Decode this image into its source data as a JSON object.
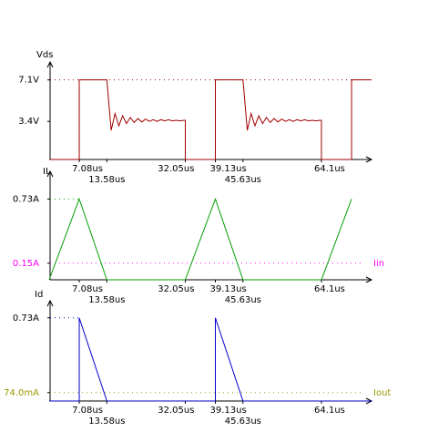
{
  "chart_data": [
    {
      "type": "line",
      "y_label": "Vds",
      "x": [
        0,
        7.08,
        7.08,
        13.58,
        14.6,
        15.5,
        16.4,
        17.3,
        18.2,
        19.1,
        20.0,
        20.9,
        21.8,
        22.7,
        23.6,
        24.5,
        25.4,
        26.3,
        27.2,
        28.1,
        29.0,
        29.9,
        30.8,
        31.7,
        32.05,
        32.05,
        39.13,
        39.13,
        45.63,
        46.65,
        47.55,
        48.45,
        49.35,
        50.25,
        51.15,
        52.05,
        52.95,
        53.85,
        54.75,
        55.65,
        56.55,
        57.45,
        58.35,
        59.25,
        60.15,
        61.05,
        61.95,
        62.85,
        63.75,
        64.1,
        64.1,
        71.2,
        71.2,
        75.9
      ],
      "series": [
        {
          "color": "#a00000",
          "values": [
            0,
            0,
            7.1,
            7.1,
            2.6,
            4.1,
            3.0,
            3.9,
            3.2,
            3.75,
            3.3,
            3.65,
            3.35,
            3.6,
            3.4,
            3.55,
            3.4,
            3.55,
            3.45,
            3.55,
            3.45,
            3.5,
            3.45,
            3.5,
            3.5,
            0,
            0,
            7.1,
            7.1,
            2.6,
            4.1,
            3.0,
            3.9,
            3.2,
            3.75,
            3.3,
            3.65,
            3.35,
            3.6,
            3.4,
            3.55,
            3.4,
            3.55,
            3.45,
            3.55,
            3.45,
            3.5,
            3.45,
            3.5,
            3.5,
            0,
            0,
            7.1,
            7.1
          ]
        }
      ],
      "xlim": [
        0,
        75.9
      ],
      "ylim": [
        0,
        8.7
      ],
      "xticks": [
        {
          "value": 7.08,
          "label": "7.08us"
        },
        {
          "value": 13.58,
          "label": "13.58us"
        },
        {
          "value": 32.05,
          "label": "32.05us"
        },
        {
          "value": 39.13,
          "label": "39.13us"
        },
        {
          "value": 45.63,
          "label": "45.63us"
        },
        {
          "value": 64.1,
          "label": "64.1us"
        }
      ],
      "yticks": [
        {
          "value": 7.1,
          "label": "7.1V"
        },
        {
          "value": 3.4,
          "label": "3.4V"
        }
      ],
      "reference_lines": [
        {
          "value": 7.1,
          "color": "#a00000",
          "extent": "full"
        }
      ]
    },
    {
      "type": "line",
      "y_label": "IL",
      "x": [
        0,
        7.08,
        13.58,
        32.05,
        39.13,
        45.63,
        64.1,
        71.2
      ],
      "series": [
        {
          "color": "#00a000",
          "values": [
            0,
            0.73,
            0,
            0,
            0.73,
            0,
            0,
            0.73
          ]
        }
      ],
      "xlim": [
        0,
        75.9
      ],
      "ylim": [
        0,
        0.98
      ],
      "xticks": [
        {
          "value": 7.08,
          "label": "7.08us"
        },
        {
          "value": 13.58,
          "label": "13.58us"
        },
        {
          "value": 32.05,
          "label": "32.05us"
        },
        {
          "value": 39.13,
          "label": "39.13us"
        },
        {
          "value": 45.63,
          "label": "45.63us"
        },
        {
          "value": 64.1,
          "label": "64.1us"
        }
      ],
      "yticks": [
        {
          "value": 0.73,
          "label": "0.73A"
        },
        {
          "value": 0.15,
          "label": "0.15A",
          "color": "#ff00ff"
        }
      ],
      "reference_lines": [
        {
          "value": 0.73,
          "color": "#00a000",
          "extent": "peak"
        },
        {
          "value": 0.15,
          "color": "#ff00ff",
          "extent": "full",
          "label": "Iin"
        }
      ]
    },
    {
      "type": "line",
      "y_label": "Id",
      "x": [
        0,
        7.08,
        7.08,
        13.58,
        39.13,
        39.13,
        45.63,
        75.9
      ],
      "series": [
        {
          "color": "#0000cc",
          "values": [
            0,
            0,
            0.73,
            0,
            0,
            0.73,
            0,
            0
          ]
        }
      ],
      "xlim": [
        0,
        75.9
      ],
      "ylim": [
        0,
        0.88
      ],
      "xticks": [
        {
          "value": 7.08,
          "label": "7.08us"
        },
        {
          "value": 13.58,
          "label": "13.58us"
        },
        {
          "value": 32.05,
          "label": "32.05us"
        },
        {
          "value": 39.13,
          "label": "39.13us"
        },
        {
          "value": 45.63,
          "label": "45.63us"
        },
        {
          "value": 64.1,
          "label": "64.1us"
        }
      ],
      "yticks": [
        {
          "value": 0.73,
          "label": "0.73A"
        },
        {
          "value": 0.074,
          "label": "74.0mA",
          "color": "#999900"
        }
      ],
      "reference_lines": [
        {
          "value": 0.73,
          "color": "#0000cc",
          "extent": "peak"
        },
        {
          "value": 0.074,
          "color": "#999900",
          "extent": "full",
          "label": "Iout"
        }
      ]
    }
  ]
}
